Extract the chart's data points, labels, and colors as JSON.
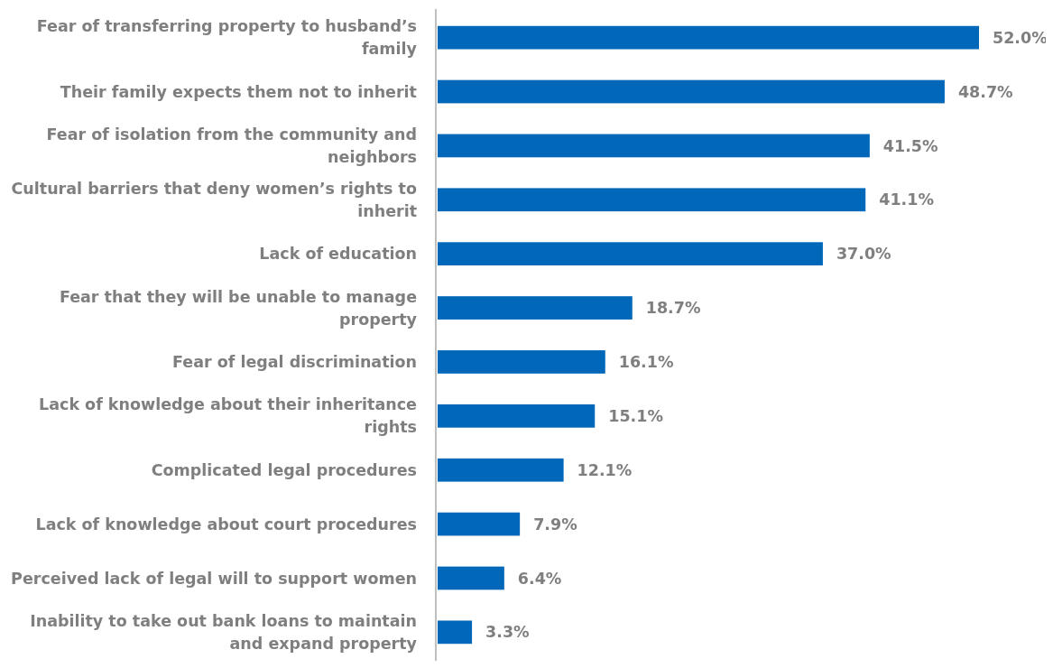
{
  "chart_data": {
    "type": "bar",
    "orientation": "horizontal",
    "color": "#0067b9",
    "value_labels": [
      "52.0%",
      "48.7%",
      "41.5%",
      "41.1%",
      "37.0%",
      "18.7%",
      "16.1%",
      "15.1%",
      "12.1%",
      "7.9%",
      "6.4%",
      "3.3%"
    ],
    "categories": [
      "Fear of transferring property to husband’s family",
      "Their family expects them not to inherit",
      "Fear of isolation from the community and neighbors",
      "Cultural barriers that deny women’s rights to inherit",
      "Lack of education",
      "Fear that they will be unable to manage property",
      "Fear of legal discrimination",
      "Lack of knowledge about their inheritance rights",
      "Complicated legal procedures",
      "Lack of knowledge about court procedures",
      "Perceived lack of legal will to support women",
      "Inability to take out bank loans to maintain and expand property"
    ],
    "values": [
      52.0,
      48.7,
      41.5,
      41.1,
      37.0,
      18.7,
      16.1,
      15.1,
      12.1,
      7.9,
      6.4,
      3.3
    ]
  }
}
